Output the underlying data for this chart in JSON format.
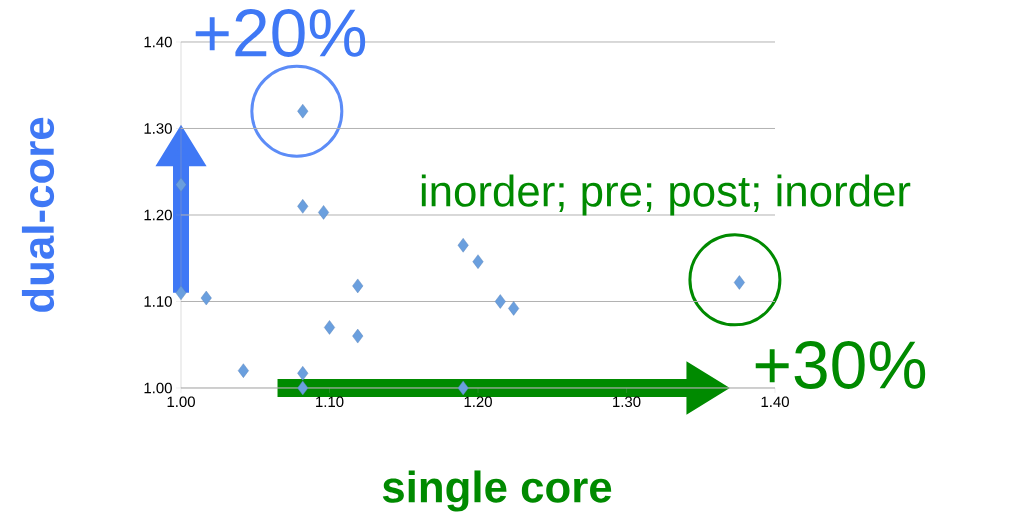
{
  "chart_data": {
    "type": "scatter",
    "xlabel": "single core",
    "ylabel": "dual-core",
    "annotations": [
      "+20%",
      "inorder; pre; post; inorder",
      "+30%"
    ],
    "x": [
      1.0,
      1.0,
      1.017,
      1.042,
      1.082,
      1.082,
      1.096,
      1.1,
      1.119,
      1.119,
      1.082,
      1.082,
      1.19,
      1.2,
      1.215,
      1.224,
      1.19,
      1.376
    ],
    "values": [
      1.235,
      1.11,
      1.104,
      1.02,
      1.32,
      1.21,
      1.203,
      1.07,
      1.118,
      1.06,
      1.017,
      1.0,
      1.165,
      1.146,
      1.1,
      1.092,
      1.0,
      1.122
    ],
    "color": "#6a9fde",
    "marker": "diamond",
    "grid": "y",
    "xlim": [
      1.0,
      1.4
    ],
    "ylim": [
      1.0,
      1.4
    ],
    "xticks": [
      {
        "value": 1.0,
        "label": "1.00"
      },
      {
        "value": 1.1,
        "label": "1.10"
      },
      {
        "value": 1.2,
        "label": "1.20"
      },
      {
        "value": 1.3,
        "label": "1.30"
      },
      {
        "value": 1.4,
        "label": "1.40"
      }
    ],
    "yticks": [
      {
        "value": 1.0,
        "label": "1.00"
      },
      {
        "value": 1.1,
        "label": "1.10"
      },
      {
        "value": 1.2,
        "label": "1.20"
      },
      {
        "value": 1.3,
        "label": "1.30"
      },
      {
        "value": 1.4,
        "label": "1.40"
      }
    ]
  }
}
